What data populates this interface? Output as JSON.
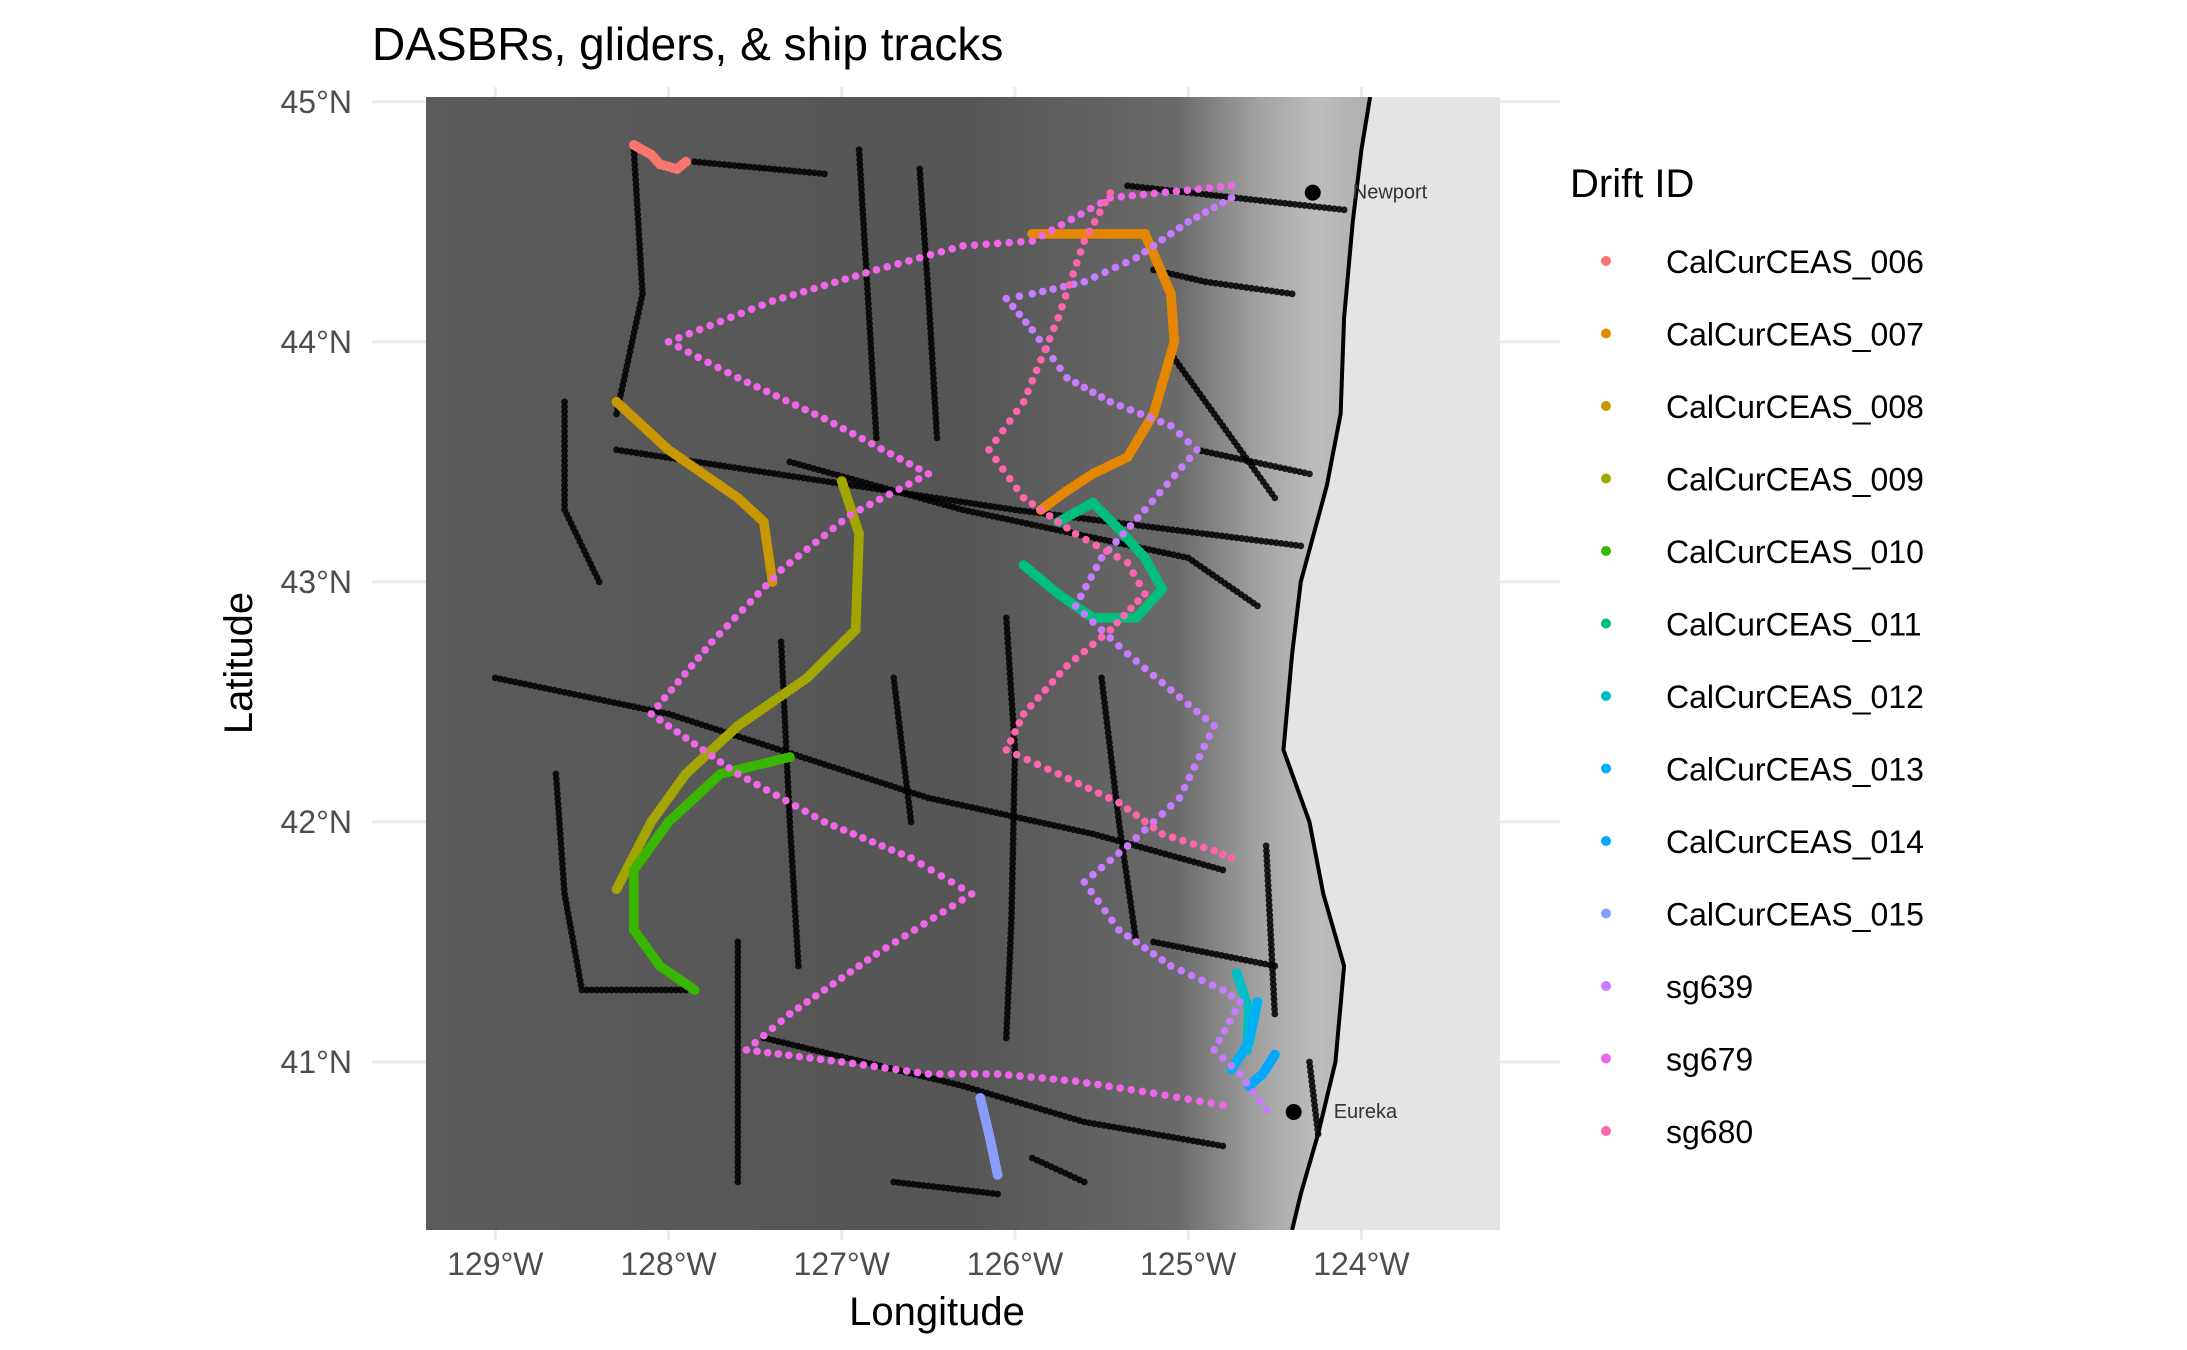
{
  "title": "DASBRs, gliders, & ship tracks",
  "x_axis": {
    "label": "Longitude",
    "range": [
      -129.4,
      -123.2
    ],
    "ticks": [
      {
        "value": -129,
        "label": "129°W"
      },
      {
        "value": -128,
        "label": "128°W"
      },
      {
        "value": -127,
        "label": "127°W"
      },
      {
        "value": -126,
        "label": "126°W"
      },
      {
        "value": -125,
        "label": "125°W"
      },
      {
        "value": -124,
        "label": "124°W"
      }
    ]
  },
  "y_axis": {
    "label": "Latitude",
    "range": [
      40.3,
      45.02
    ],
    "ticks": [
      {
        "value": 41,
        "label": "41°N"
      },
      {
        "value": 42,
        "label": "42°N"
      },
      {
        "value": 43,
        "label": "43°N"
      },
      {
        "value": 44,
        "label": "44°N"
      },
      {
        "value": 45,
        "label": "45°N"
      }
    ]
  },
  "cities": [
    {
      "name": "Newport",
      "lon": -124.05,
      "lat": 44.63
    },
    {
      "name": "Eureka",
      "lon": -124.16,
      "lat": 40.8
    }
  ],
  "legend": {
    "title": "Drift ID",
    "position": "right",
    "items": [
      {
        "label": "CalCurCEAS_006",
        "color": "#F8766D"
      },
      {
        "label": "CalCurCEAS_007",
        "color": "#E58700"
      },
      {
        "label": "CalCurCEAS_008",
        "color": "#C99800"
      },
      {
        "label": "CalCurCEAS_009",
        "color": "#A3A500"
      },
      {
        "label": "CalCurCEAS_010",
        "color": "#39B600"
      },
      {
        "label": "CalCurCEAS_011",
        "color": "#00BF7D"
      },
      {
        "label": "CalCurCEAS_012",
        "color": "#00BFC4"
      },
      {
        "label": "CalCurCEAS_013",
        "color": "#00B0F6"
      },
      {
        "label": "CalCurCEAS_014",
        "color": "#00A9FF"
      },
      {
        "label": "CalCurCEAS_015",
        "color": "#8A9DFF"
      },
      {
        "label": "sg639",
        "color": "#C77CFF"
      },
      {
        "label": "sg679",
        "color": "#F066E9"
      },
      {
        "label": "sg680",
        "color": "#FF65AC"
      }
    ]
  },
  "chart_data": {
    "type": "scatter",
    "title": "DASBRs, gliders, & ship tracks",
    "xlabel": "Longitude",
    "ylabel": "Latitude",
    "xlim": [
      -129.4,
      -123.2
    ],
    "ylim": [
      40.3,
      45.02
    ],
    "series": [
      {
        "name": "CalCurCEAS_006",
        "color": "#F8766D",
        "points": [
          [
            -128.2,
            44.82
          ],
          [
            -128.1,
            44.78
          ],
          [
            -128.05,
            44.74
          ],
          [
            -127.95,
            44.72
          ],
          [
            -127.9,
            44.75
          ]
        ]
      },
      {
        "name": "CalCurCEAS_007",
        "color": "#E58700",
        "points": [
          [
            -125.9,
            44.45
          ],
          [
            -125.25,
            44.45
          ],
          [
            -125.1,
            44.2
          ],
          [
            -125.08,
            44.0
          ],
          [
            -125.2,
            43.7
          ],
          [
            -125.35,
            43.52
          ],
          [
            -125.55,
            43.45
          ],
          [
            -125.7,
            43.38
          ],
          [
            -125.85,
            43.3
          ]
        ]
      },
      {
        "name": "CalCurCEAS_008",
        "color": "#C99800",
        "points": [
          [
            -128.3,
            43.75
          ],
          [
            -128.0,
            43.55
          ],
          [
            -127.6,
            43.35
          ],
          [
            -127.45,
            43.25
          ],
          [
            -127.4,
            43.0
          ]
        ]
      },
      {
        "name": "CalCurCEAS_009",
        "color": "#A3A500",
        "points": [
          [
            -127.0,
            43.42
          ],
          [
            -126.9,
            43.2
          ],
          [
            -126.92,
            42.8
          ],
          [
            -127.2,
            42.6
          ],
          [
            -127.6,
            42.4
          ],
          [
            -127.9,
            42.2
          ],
          [
            -128.1,
            42.0
          ],
          [
            -128.3,
            41.72
          ]
        ]
      },
      {
        "name": "CalCurCEAS_010",
        "color": "#39B600",
        "points": [
          [
            -127.3,
            42.27
          ],
          [
            -127.7,
            42.2
          ],
          [
            -128.0,
            42.0
          ],
          [
            -128.2,
            41.8
          ],
          [
            -128.2,
            41.55
          ],
          [
            -128.05,
            41.4
          ],
          [
            -127.85,
            41.3
          ]
        ]
      },
      {
        "name": "CalCurCEAS_011",
        "color": "#00BF7D",
        "points": [
          [
            -125.95,
            43.07
          ],
          [
            -125.75,
            42.95
          ],
          [
            -125.55,
            42.85
          ],
          [
            -125.3,
            42.85
          ],
          [
            -125.15,
            42.97
          ],
          [
            -125.25,
            43.1
          ],
          [
            -125.4,
            43.22
          ],
          [
            -125.55,
            43.33
          ],
          [
            -125.75,
            43.25
          ]
        ]
      },
      {
        "name": "CalCurCEAS_012",
        "color": "#00BFC4",
        "points": [
          [
            -124.72,
            41.37
          ],
          [
            -124.65,
            41.22
          ],
          [
            -124.66,
            41.05
          ]
        ]
      },
      {
        "name": "CalCurCEAS_013",
        "color": "#00B0F6",
        "points": [
          [
            -124.6,
            41.25
          ],
          [
            -124.65,
            41.08
          ],
          [
            -124.75,
            40.97
          ]
        ]
      },
      {
        "name": "CalCurCEAS_014",
        "color": "#00A9FF",
        "points": [
          [
            -124.5,
            41.03
          ],
          [
            -124.57,
            40.95
          ],
          [
            -124.65,
            40.9
          ]
        ]
      },
      {
        "name": "CalCurCEAS_015",
        "color": "#8A9DFF",
        "points": [
          [
            -126.2,
            40.85
          ],
          [
            -126.15,
            40.7
          ],
          [
            -126.1,
            40.53
          ]
        ]
      },
      {
        "name": "sg639",
        "color": "#C77CFF",
        "points": [
          [
            -124.75,
            44.6
          ],
          [
            -125.0,
            44.5
          ],
          [
            -125.3,
            44.35
          ],
          [
            -125.6,
            44.25
          ],
          [
            -125.9,
            44.2
          ],
          [
            -126.05,
            44.18
          ],
          [
            -125.9,
            44.05
          ],
          [
            -125.7,
            43.85
          ],
          [
            -125.45,
            43.75
          ],
          [
            -125.1,
            43.65
          ],
          [
            -124.95,
            43.55
          ],
          [
            -125.25,
            43.3
          ],
          [
            -125.5,
            43.1
          ],
          [
            -125.65,
            42.9
          ],
          [
            -125.35,
            42.7
          ],
          [
            -125.1,
            42.55
          ],
          [
            -124.85,
            42.4
          ],
          [
            -125.05,
            42.1
          ],
          [
            -125.35,
            41.9
          ],
          [
            -125.6,
            41.75
          ],
          [
            -125.4,
            41.55
          ],
          [
            -125.1,
            41.4
          ],
          [
            -124.8,
            41.3
          ],
          [
            -124.7,
            41.25
          ],
          [
            -124.85,
            41.05
          ],
          [
            -124.7,
            40.95
          ],
          [
            -124.55,
            40.8
          ]
        ]
      },
      {
        "name": "sg679",
        "color": "#F066E9",
        "points": [
          [
            -124.75,
            44.65
          ],
          [
            -125.45,
            44.6
          ],
          [
            -125.9,
            44.42
          ],
          [
            -126.3,
            44.4
          ],
          [
            -126.8,
            44.3
          ],
          [
            -127.4,
            44.17
          ],
          [
            -128.0,
            44.0
          ],
          [
            -127.6,
            43.85
          ],
          [
            -127.1,
            43.68
          ],
          [
            -126.5,
            43.45
          ],
          [
            -126.95,
            43.28
          ],
          [
            -127.35,
            43.05
          ],
          [
            -127.75,
            42.75
          ],
          [
            -128.1,
            42.45
          ],
          [
            -127.6,
            42.2
          ],
          [
            -127.1,
            42.0
          ],
          [
            -126.6,
            41.85
          ],
          [
            -126.25,
            41.7
          ],
          [
            -126.8,
            41.45
          ],
          [
            -127.3,
            41.2
          ],
          [
            -127.55,
            41.05
          ],
          [
            -127.0,
            41.0
          ],
          [
            -126.5,
            40.95
          ],
          [
            -126.1,
            40.95
          ],
          [
            -125.65,
            40.92
          ],
          [
            -125.2,
            40.87
          ],
          [
            -124.8,
            40.82
          ]
        ]
      },
      {
        "name": "sg680",
        "color": "#FF65AC",
        "points": [
          [
            -125.45,
            44.62
          ],
          [
            -125.6,
            44.42
          ],
          [
            -125.75,
            44.1
          ],
          [
            -125.95,
            43.75
          ],
          [
            -126.15,
            43.55
          ],
          [
            -125.95,
            43.35
          ],
          [
            -125.65,
            43.2
          ],
          [
            -125.35,
            43.08
          ],
          [
            -125.25,
            42.95
          ],
          [
            -125.45,
            42.8
          ],
          [
            -125.7,
            42.65
          ],
          [
            -125.95,
            42.45
          ],
          [
            -126.05,
            42.3
          ],
          [
            -125.75,
            42.2
          ],
          [
            -125.4,
            42.08
          ],
          [
            -125.15,
            41.95
          ],
          [
            -124.85,
            41.88
          ],
          [
            -124.75,
            41.85
          ]
        ]
      }
    ],
    "ship_tracks": [
      [
        [
          -128.2,
          44.8
        ],
        [
          -128.15,
          44.2
        ],
        [
          -128.3,
          43.7
        ]
      ],
      [
        [
          -127.85,
          44.75
        ],
        [
          -127.1,
          44.7
        ]
      ],
      [
        [
          -126.55,
          44.72
        ],
        [
          -126.5,
          44.2
        ],
        [
          -126.45,
          43.6
        ]
      ],
      [
        [
          -126.9,
          44.8
        ],
        [
          -126.85,
          44.2
        ],
        [
          -126.8,
          43.6
        ]
      ],
      [
        [
          -125.35,
          44.65
        ],
        [
          -124.1,
          44.55
        ]
      ],
      [
        [
          -125.2,
          44.3
        ],
        [
          -124.9,
          44.25
        ],
        [
          -124.4,
          44.2
        ]
      ],
      [
        [
          -125.1,
          43.95
        ],
        [
          -124.75,
          43.6
        ],
        [
          -124.5,
          43.35
        ]
      ],
      [
        [
          -124.95,
          43.55
        ],
        [
          -124.3,
          43.45
        ]
      ],
      [
        [
          -128.6,
          43.75
        ],
        [
          -128.6,
          43.3
        ],
        [
          -128.4,
          43.0
        ]
      ],
      [
        [
          -128.3,
          43.55
        ],
        [
          -126.0,
          43.3
        ],
        [
          -124.35,
          43.15
        ]
      ],
      [
        [
          -127.3,
          43.5
        ],
        [
          -126.3,
          43.3
        ],
        [
          -125.0,
          43.1
        ],
        [
          -124.6,
          42.9
        ]
      ],
      [
        [
          -129.0,
          42.6
        ],
        [
          -128.0,
          42.45
        ],
        [
          -126.5,
          42.1
        ],
        [
          -125.55,
          41.95
        ],
        [
          -124.8,
          41.8
        ]
      ],
      [
        [
          -128.65,
          42.2
        ],
        [
          -128.6,
          41.7
        ],
        [
          -128.5,
          41.3
        ],
        [
          -127.9,
          41.3
        ]
      ],
      [
        [
          -127.35,
          42.75
        ],
        [
          -127.3,
          42.0
        ],
        [
          -127.25,
          41.4
        ]
      ],
      [
        [
          -126.7,
          42.6
        ],
        [
          -126.6,
          42.0
        ]
      ],
      [
        [
          -126.05,
          42.85
        ],
        [
          -126.0,
          42.3
        ],
        [
          -126.02,
          41.6
        ],
        [
          -126.05,
          41.1
        ]
      ],
      [
        [
          -125.5,
          42.6
        ],
        [
          -125.4,
          42.0
        ],
        [
          -125.3,
          41.5
        ]
      ],
      [
        [
          -127.6,
          41.5
        ],
        [
          -127.6,
          40.5
        ]
      ],
      [
        [
          -127.45,
          41.1
        ],
        [
          -126.3,
          40.9
        ],
        [
          -125.6,
          40.75
        ],
        [
          -124.8,
          40.65
        ]
      ],
      [
        [
          -126.7,
          40.5
        ],
        [
          -126.1,
          40.45
        ]
      ],
      [
        [
          -125.9,
          40.6
        ],
        [
          -125.6,
          40.5
        ]
      ],
      [
        [
          -125.2,
          41.5
        ],
        [
          -124.5,
          41.4
        ]
      ],
      [
        [
          -124.55,
          41.9
        ],
        [
          -124.5,
          41.2
        ]
      ],
      [
        [
          -124.3,
          41.0
        ],
        [
          -124.25,
          40.7
        ]
      ]
    ],
    "coastline": [
      [
        -123.95,
        45.02
      ],
      [
        -124.0,
        44.8
      ],
      [
        -124.05,
        44.5
      ],
      [
        -124.1,
        44.1
      ],
      [
        -124.12,
        43.7
      ],
      [
        -124.2,
        43.4
      ],
      [
        -124.35,
        43.0
      ],
      [
        -124.4,
        42.7
      ],
      [
        -124.45,
        42.3
      ],
      [
        -124.3,
        42.0
      ],
      [
        -124.22,
        41.7
      ],
      [
        -124.1,
        41.4
      ],
      [
        -124.15,
        41.0
      ],
      [
        -124.25,
        40.7
      ],
      [
        -124.35,
        40.45
      ],
      [
        -124.4,
        40.3
      ]
    ]
  }
}
